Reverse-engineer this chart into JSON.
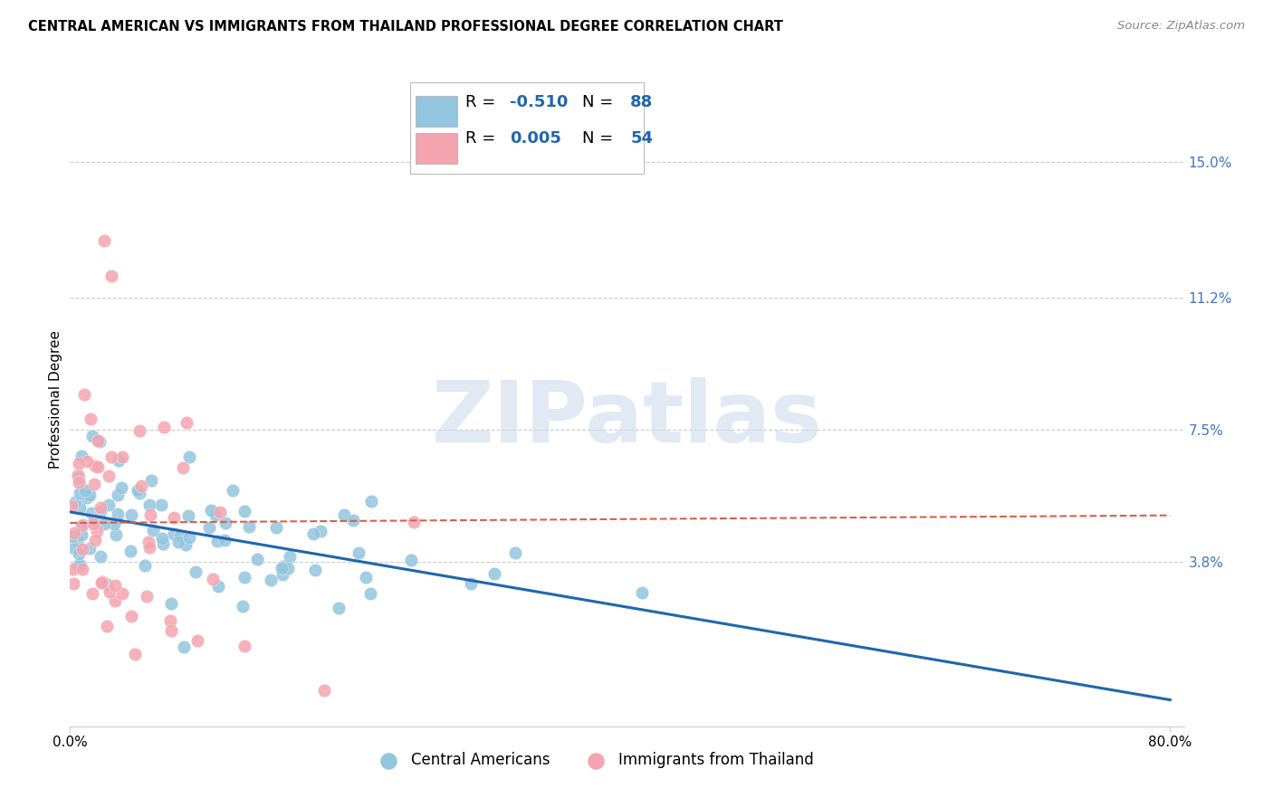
{
  "title": "CENTRAL AMERICAN VS IMMIGRANTS FROM THAILAND PROFESSIONAL DEGREE CORRELATION CHART",
  "source": "Source: ZipAtlas.com",
  "ylabel": "Professional Degree",
  "ytick_labels": [
    "15.0%",
    "11.2%",
    "7.5%",
    "3.8%"
  ],
  "ytick_values": [
    0.15,
    0.112,
    0.075,
    0.038
  ],
  "xlim": [
    0.0,
    0.8
  ],
  "ylim": [
    -0.008,
    0.175
  ],
  "blue_r": -0.51,
  "blue_n": 88,
  "pink_r": 0.005,
  "pink_n": 54,
  "blue_color": "#92C5DE",
  "pink_color": "#F4A5B0",
  "blue_line_color": "#2166AC",
  "pink_line_color": "#D6604D",
  "title_fontsize": 10.5,
  "source_fontsize": 9.5,
  "axis_label_fontsize": 11,
  "tick_fontsize": 11,
  "right_tick_color": "#4472C4",
  "background_color": "#FFFFFF",
  "watermark_text": "ZIPatlas",
  "watermark_color": "#C8D8EC",
  "grid_color": "#CCCCCC",
  "legend_text_color": "#2166AC",
  "legend_r1_val": "-0.510",
  "legend_n1_val": "88",
  "legend_r2_val": "0.005",
  "legend_n2_val": "54",
  "bottom_legend_labels": [
    "Central Americans",
    "Immigrants from Thailand"
  ]
}
